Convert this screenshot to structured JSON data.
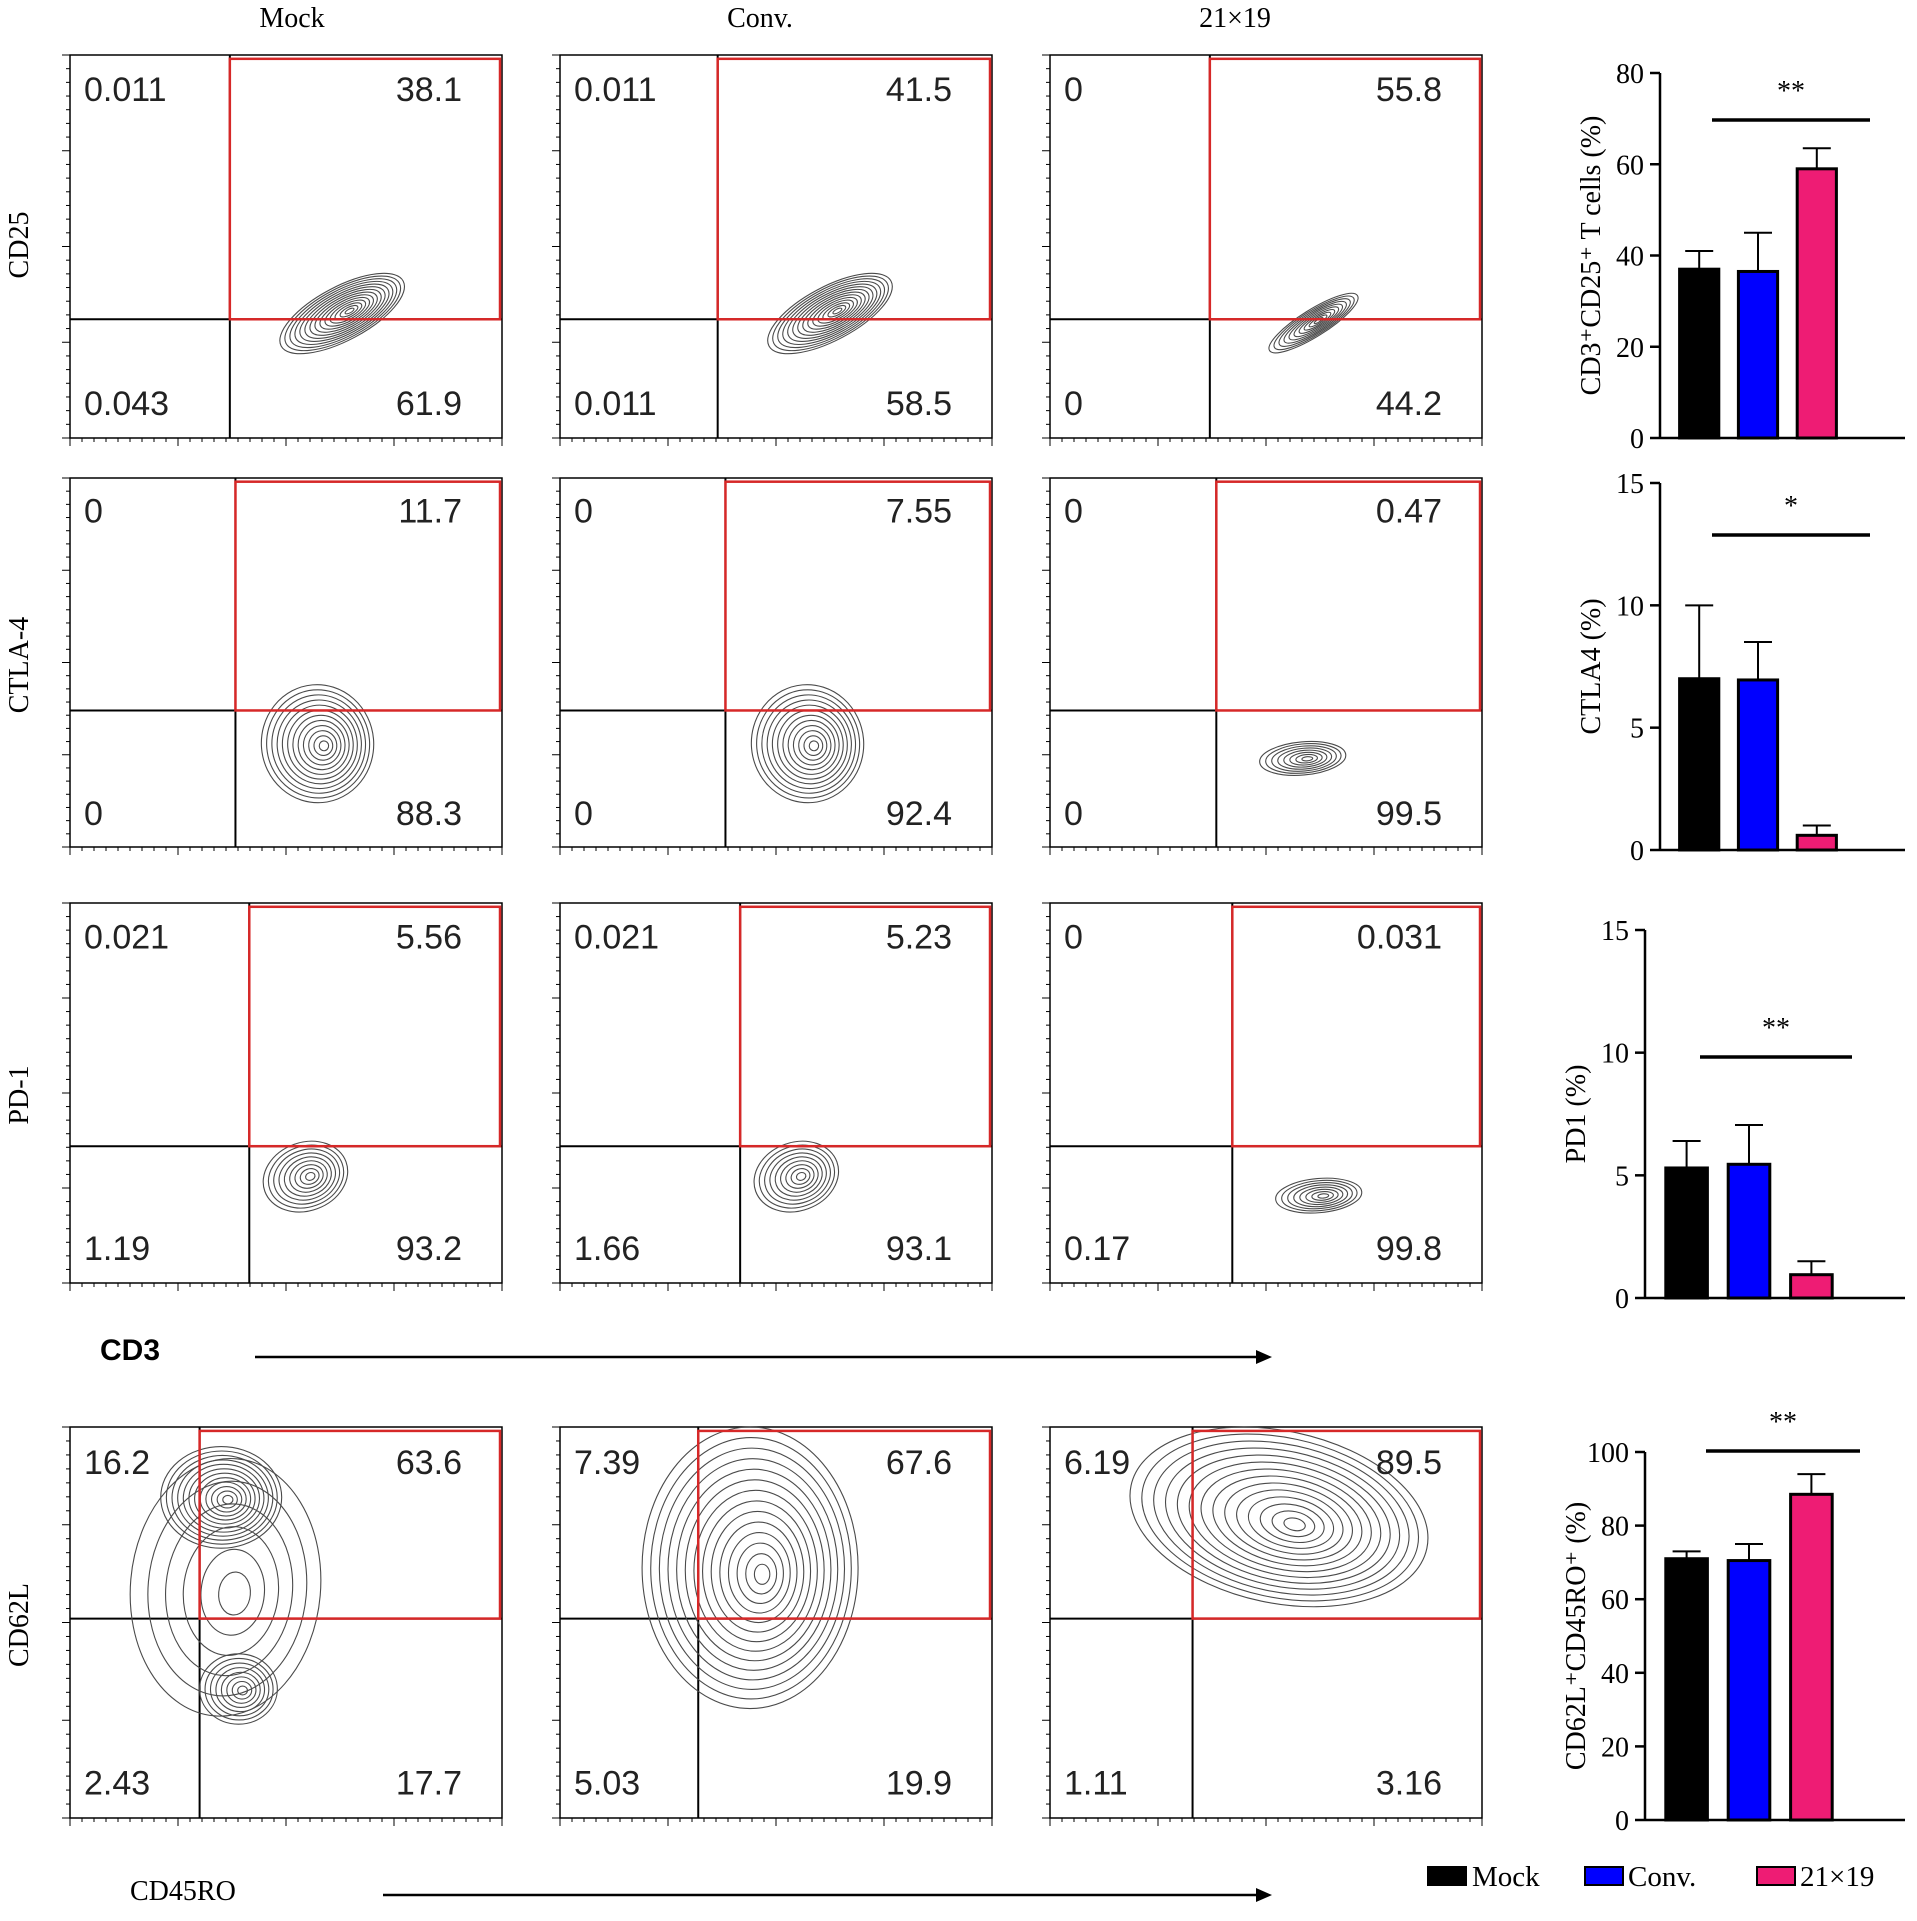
{
  "column_titles": [
    "Mock",
    "Conv.",
    "21×19"
  ],
  "flow_rows": [
    {
      "y_marker": "CD25",
      "panels": [
        {
          "quadrants": [
            "0.011",
            "38.1",
            "0.043",
            "61.9"
          ],
          "population": "diag-up"
        },
        {
          "quadrants": [
            "0.011",
            "41.5",
            "0.011",
            "58.5"
          ],
          "population": "diag-up"
        },
        {
          "quadrants": [
            "0",
            "55.8",
            "0",
            "44.2"
          ],
          "population": "thin-diag"
        }
      ]
    },
    {
      "y_marker": "CTLA-4",
      "panels": [
        {
          "quadrants": [
            "0",
            "11.7",
            "0",
            "88.3"
          ],
          "population": "round"
        },
        {
          "quadrants": [
            "0",
            "7.55",
            "0",
            "92.4"
          ],
          "population": "round"
        },
        {
          "quadrants": [
            "0",
            "0.47",
            "0",
            "99.5"
          ],
          "population": "flat"
        }
      ]
    },
    {
      "y_marker": "PD-1",
      "panels": [
        {
          "quadrants": [
            "0.021",
            "5.56",
            "1.19",
            "93.2"
          ],
          "population": "small"
        },
        {
          "quadrants": [
            "0.021",
            "5.23",
            "1.66",
            "93.1"
          ],
          "population": "small"
        },
        {
          "quadrants": [
            "0",
            "0.031",
            "0.17",
            "99.8"
          ],
          "population": "flat"
        }
      ]
    },
    {
      "y_marker": "CD62L",
      "panels": [
        {
          "quadrants": [
            "16.2",
            "63.6",
            "2.43",
            "17.7"
          ],
          "population": "bimodal"
        },
        {
          "quadrants": [
            "7.39",
            "67.6",
            "5.03",
            "19.9"
          ],
          "population": "broad"
        },
        {
          "quadrants": [
            "6.19",
            "89.5",
            "1.11",
            "3.16"
          ],
          "population": "fan"
        }
      ]
    }
  ],
  "x_markers": [
    "CD3",
    "CD45RO"
  ],
  "chart_data": [
    {
      "type": "bar",
      "categories": [
        "Mock",
        "Conv.",
        "21×19"
      ],
      "values": [
        37,
        36.5,
        59
      ],
      "errors": [
        4,
        8.5,
        4.5
      ],
      "ylabel": "CD3⁺CD25⁺ T cells (%)",
      "ylim": [
        0,
        80
      ],
      "yticks": [
        "0",
        "20",
        "40",
        "60",
        "80"
      ],
      "significance": "**"
    },
    {
      "type": "bar",
      "categories": [
        "Mock",
        "Conv.",
        "21×19"
      ],
      "values": [
        7,
        6.95,
        0.6
      ],
      "errors": [
        3,
        1.55,
        0.4
      ],
      "ylabel": "CTLA4 (%)",
      "ylim": [
        0,
        15
      ],
      "yticks": [
        "0",
        "5",
        "10",
        "15"
      ],
      "significance": "*"
    },
    {
      "type": "bar",
      "categories": [
        "Mock",
        "Conv.",
        "21×19"
      ],
      "values": [
        5.3,
        5.45,
        0.95
      ],
      "errors": [
        1.1,
        1.6,
        0.55
      ],
      "ylabel": "PD1 (%)",
      "ylim": [
        0,
        15
      ],
      "yticks": [
        "0",
        "5",
        "10",
        "15"
      ],
      "significance": "**"
    },
    {
      "type": "bar",
      "categories": [
        "Mock",
        "Conv.",
        "21×19"
      ],
      "values": [
        71,
        70.5,
        88.5
      ],
      "errors": [
        2,
        4.5,
        5.5
      ],
      "ylabel": "CD62L⁺CD45RO⁺ (%)",
      "ylim": [
        0,
        100
      ],
      "yticks": [
        "0",
        "20",
        "40",
        "60",
        "80",
        "100"
      ],
      "significance": "**"
    }
  ],
  "legend": [
    {
      "label": "Mock",
      "color": "#000000"
    },
    {
      "label": "Conv.",
      "color": "#0000ff"
    },
    {
      "label": "21×19",
      "color": "#ee1c74"
    }
  ],
  "colors": {
    "gate": "#d62828",
    "axis": "#000000",
    "contour": "#4a4a4a"
  }
}
